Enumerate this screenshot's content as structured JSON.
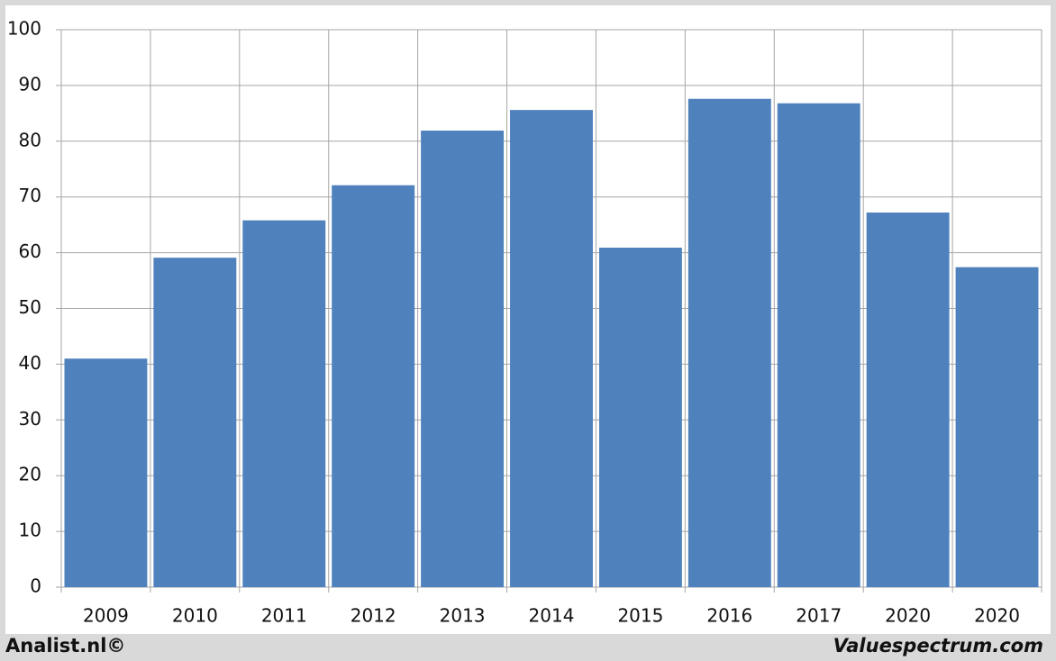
{
  "chart_data": {
    "type": "bar",
    "categories": [
      "2009",
      "2010",
      "2011",
      "2012",
      "2013",
      "2014",
      "2015",
      "2016",
      "2017",
      "2020",
      "2020"
    ],
    "values": [
      41.0,
      59.1,
      65.8,
      72.1,
      81.9,
      85.6,
      60.9,
      87.6,
      86.8,
      67.2,
      57.4
    ],
    "color": "#4f81bd",
    "ylim": [
      0,
      100
    ],
    "yticks": [
      0,
      10,
      20,
      30,
      40,
      50,
      60,
      70,
      80,
      90,
      100
    ],
    "grid": true
  },
  "footer": {
    "left": "Analist.nl©",
    "right": "Valuespectrum.com"
  }
}
